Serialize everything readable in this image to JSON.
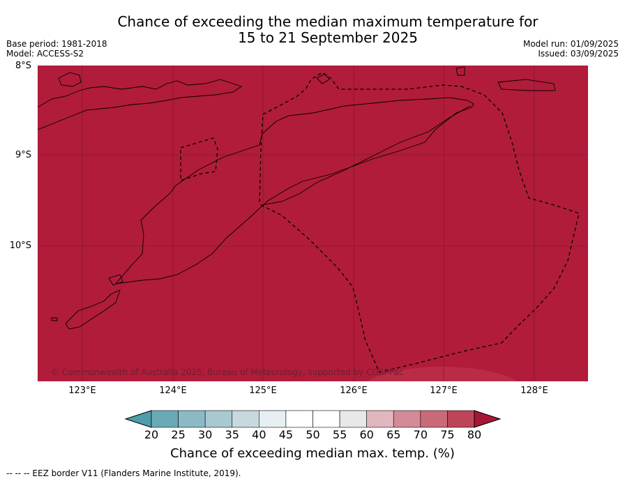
{
  "title": {
    "line1": "Chance of exceeding the median maximum temperature for",
    "line2": "15 to 21 September 2025"
  },
  "meta_left": {
    "base_period": "Base period: 1981-2018",
    "model": "Model: ACCESS-S2"
  },
  "meta_right": {
    "model_run": "Model run: 01/09/2025",
    "issued": "Issued: 03/09/2025"
  },
  "latitude_labels": [
    "8°S",
    "9°S",
    "10°S"
  ],
  "longitude_labels": [
    "123°E",
    "124°E",
    "125°E",
    "126°E",
    "127°E",
    "128°E"
  ],
  "map": {
    "fill_color": "#b11c3a",
    "land_outline_color": "#000000",
    "eez_border_style": "dashed"
  },
  "copyright": "© Commonwealth of Australia 2025, Bureau of Meteorology, supported by COSPPac",
  "colorbar": {
    "ticks": [
      "20",
      "25",
      "30",
      "35",
      "40",
      "45",
      "50",
      "55",
      "60",
      "65",
      "70",
      "75",
      "80"
    ],
    "colors": [
      "#6aaab6",
      "#8bbac5",
      "#a8c9cf",
      "#c6d9dc",
      "#e6eff2",
      "#ffffff",
      "#ffffff",
      "#e8e8e8",
      "#e0b6bf",
      "#d58a97",
      "#c96a79",
      "#bd4558"
    ],
    "under_color": "#4f9dab",
    "over_color": "#a81636",
    "label": "Chance of exceeding median max. temp. (%)"
  },
  "footer": "--  --  -- EEZ border V11 (Flanders Marine Institute, 2019)."
}
